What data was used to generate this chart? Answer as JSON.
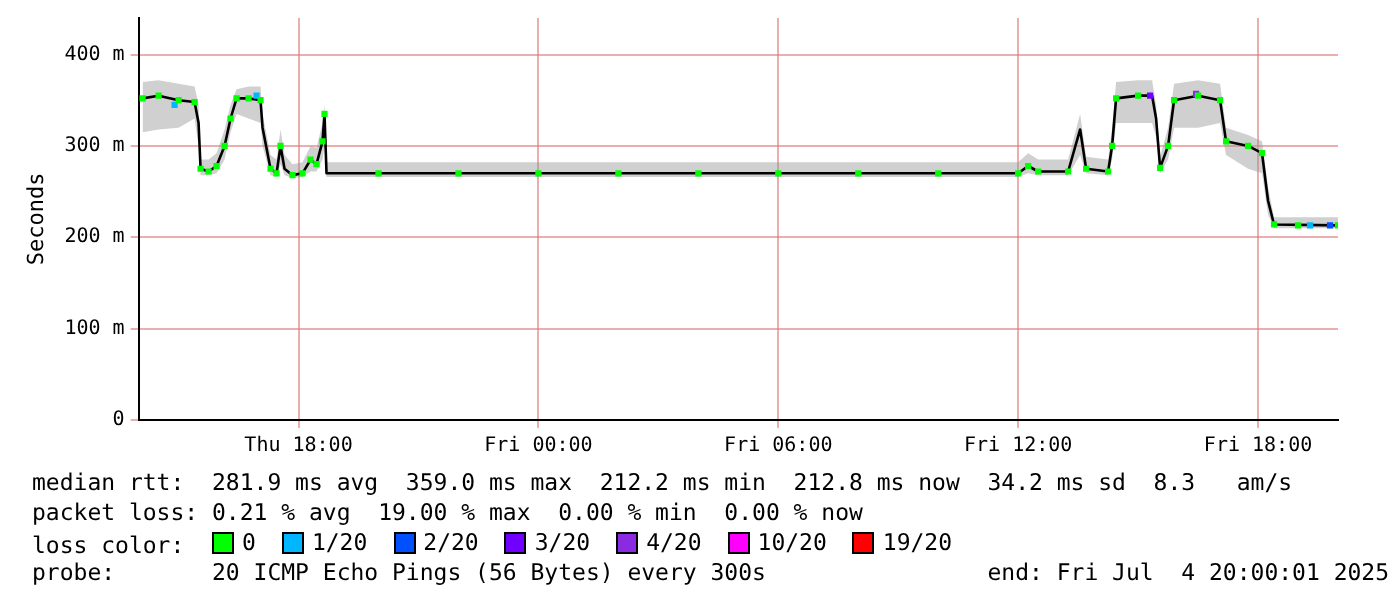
{
  "chart_data": {
    "type": "line",
    "ylabel": "Seconds",
    "xlim": [
      "2025-07-03T14:00",
      "2025-07-04T20:00"
    ],
    "xticks": [
      {
        "value": "2025-07-03T18:00",
        "label": "Thu 18:00"
      },
      {
        "value": "2025-07-04T00:00",
        "label": "Fri 00:00"
      },
      {
        "value": "2025-07-04T06:00",
        "label": "Fri 06:00"
      },
      {
        "value": "2025-07-04T12:00",
        "label": "Fri 12:00"
      },
      {
        "value": "2025-07-04T18:00",
        "label": "Fri 18:00"
      }
    ],
    "ylim": [
      0,
      440
    ],
    "yticks": [
      0,
      {
        "value": 100,
        "label": "100 m"
      },
      {
        "value": 200,
        "label": "200 m"
      },
      {
        "value": 300,
        "label": "300 m"
      },
      {
        "value": 400,
        "label": "400 m"
      }
    ],
    "grid": true,
    "legend": "bottom",
    "legend_title": "loss color:",
    "series": [
      {
        "color": "#000000",
        "x": [
          "2025-07-03T14:06",
          "2025-07-03T14:30",
          "2025-07-03T15:00",
          "2025-07-03T15:24",
          "2025-07-03T15:30",
          "2025-07-03T15:33",
          "2025-07-03T15:45",
          "2025-07-03T15:57",
          "2025-07-03T16:09",
          "2025-07-03T16:18",
          "2025-07-03T16:27",
          "2025-07-03T16:45",
          "2025-07-03T17:03",
          "2025-07-03T17:06",
          "2025-07-03T17:18",
          "2025-07-03T17:27",
          "2025-07-03T17:33",
          "2025-07-03T17:39",
          "2025-07-03T17:51",
          "2025-07-03T18:06",
          "2025-07-03T18:18",
          "2025-07-03T18:27",
          "2025-07-03T18:36",
          "2025-07-03T18:39",
          "2025-07-03T18:42",
          "2025-07-04T12:00",
          "2025-07-04T12:15",
          "2025-07-04T12:30",
          "2025-07-04T13:15",
          "2025-07-04T13:33",
          "2025-07-04T13:42",
          "2025-07-04T14:15",
          "2025-07-04T14:21",
          "2025-07-04T14:27",
          "2025-07-04T15:00",
          "2025-07-04T15:21",
          "2025-07-04T15:27",
          "2025-07-04T15:33",
          "2025-07-04T15:45",
          "2025-07-04T15:54",
          "2025-07-04T16:30",
          "2025-07-04T17:03",
          "2025-07-04T17:12",
          "2025-07-04T17:45",
          "2025-07-04T18:06",
          "2025-07-04T18:15",
          "2025-07-04T18:24",
          "2025-07-04T20:00"
        ],
        "values": [
          352,
          355,
          350,
          348,
          325,
          275,
          272,
          278,
          300,
          330,
          352,
          352,
          350,
          320,
          275,
          270,
          300,
          275,
          268,
          270,
          285,
          280,
          305,
          335,
          270,
          270,
          278,
          272,
          272,
          318,
          275,
          272,
          300,
          352,
          355,
          355,
          330,
          276,
          300,
          350,
          355,
          350,
          305,
          300,
          292,
          240,
          214,
          213
        ],
        "lower": [
          315,
          318,
          320,
          330,
          300,
          268,
          268,
          270,
          285,
          315,
          335,
          330,
          325,
          300,
          268,
          266,
          280,
          268,
          265,
          266,
          272,
          272,
          285,
          300,
          266,
          266,
          270,
          268,
          268,
          290,
          270,
          268,
          285,
          325,
          325,
          325,
          310,
          270,
          285,
          320,
          320,
          325,
          290,
          275,
          270,
          225,
          210,
          210
        ],
        "upper": [
          370,
          372,
          368,
          365,
          345,
          285,
          285,
          292,
          318,
          345,
          362,
          365,
          365,
          335,
          290,
          285,
          318,
          290,
          280,
          282,
          300,
          298,
          325,
          345,
          282,
          282,
          292,
          285,
          285,
          335,
          288,
          285,
          320,
          370,
          372,
          372,
          345,
          288,
          320,
          368,
          372,
          368,
          320,
          312,
          305,
          255,
          222,
          222
        ]
      },
      {
        "type": "scatter",
        "name": "0",
        "color": "#00ff00",
        "marker": "square",
        "x": [
          "2025-07-03T14:06",
          "2025-07-03T14:30",
          "2025-07-03T15:00",
          "2025-07-03T15:24",
          "2025-07-03T15:33",
          "2025-07-03T15:45",
          "2025-07-03T15:57",
          "2025-07-03T16:09",
          "2025-07-03T16:18",
          "2025-07-03T16:27",
          "2025-07-03T16:45",
          "2025-07-03T17:03",
          "2025-07-03T17:18",
          "2025-07-03T17:27",
          "2025-07-03T17:33",
          "2025-07-03T17:51",
          "2025-07-03T18:06",
          "2025-07-03T18:18",
          "2025-07-03T18:27",
          "2025-07-03T18:36",
          "2025-07-03T18:39",
          "2025-07-03T20:00",
          "2025-07-03T22:00",
          "2025-07-04T00:00",
          "2025-07-04T02:00",
          "2025-07-04T04:00",
          "2025-07-04T06:00",
          "2025-07-04T08:00",
          "2025-07-04T10:00",
          "2025-07-04T12:00",
          "2025-07-04T12:15",
          "2025-07-04T12:30",
          "2025-07-04T13:15",
          "2025-07-04T13:42",
          "2025-07-04T14:15",
          "2025-07-04T14:21",
          "2025-07-04T14:27",
          "2025-07-04T15:00",
          "2025-07-04T15:33",
          "2025-07-04T15:45",
          "2025-07-04T15:54",
          "2025-07-04T16:30",
          "2025-07-04T17:03",
          "2025-07-04T17:12",
          "2025-07-04T17:45",
          "2025-07-04T18:06",
          "2025-07-04T18:24",
          "2025-07-04T19:00",
          "2025-07-04T20:00"
        ],
        "values": [
          352,
          355,
          350,
          348,
          275,
          272,
          278,
          300,
          330,
          352,
          352,
          350,
          275,
          270,
          300,
          268,
          270,
          285,
          280,
          305,
          335,
          270,
          270,
          270,
          270,
          270,
          270,
          270,
          270,
          270,
          278,
          272,
          272,
          275,
          272,
          300,
          352,
          355,
          276,
          300,
          350,
          355,
          350,
          305,
          300,
          292,
          214,
          213,
          213
        ]
      },
      {
        "type": "scatter",
        "name": "1/20",
        "color": "#00b7ff",
        "marker": "square",
        "x": [
          "2025-07-03T14:54",
          "2025-07-03T16:57",
          "2025-07-04T19:18"
        ],
        "values": [
          345,
          355,
          213
        ]
      },
      {
        "type": "scatter",
        "name": "2/20",
        "color": "#0050ff",
        "marker": "square",
        "x": [
          "2025-07-04T19:48"
        ],
        "values": [
          213
        ]
      },
      {
        "type": "scatter",
        "name": "3/20",
        "color": "#7000ff",
        "marker": "square",
        "x": [
          "2025-07-04T15:18"
        ],
        "values": [
          355
        ]
      },
      {
        "type": "scatter",
        "name": "4/20",
        "color": "#8a2be2",
        "marker": "square",
        "x": [
          "2025-07-04T16:27"
        ],
        "values": [
          357
        ]
      },
      {
        "type": "scatter",
        "name": "10/20",
        "color": "#ff00ff",
        "marker": "square"
      },
      {
        "type": "scatter",
        "name": "19/20",
        "color": "#ff0000",
        "marker": "square"
      }
    ],
    "annotations": [
      "median rtt:  281.9 ms avg  359.0 ms max  212.2 ms min  212.8 ms now  34.2 ms sd  8.3   am/s",
      "packet loss: 0.21 % avg  19.00 % max  0.00 % min  0.00 % now",
      "probe:       20 ICMP Echo Pings (56 Bytes) every 300s                end: Fri Jul  4 20:00:01 2025"
    ]
  }
}
